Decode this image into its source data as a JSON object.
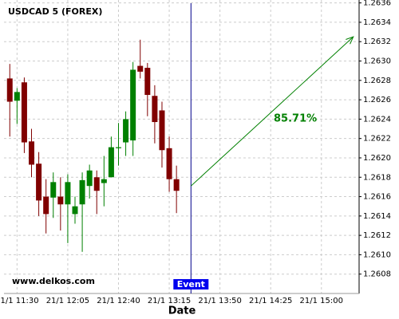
{
  "chart_data": {
    "type": "candlestick",
    "title": "USDCAD 5 (FOREX)",
    "watermark": "www.delkos.com",
    "x_label": "Date",
    "up_color": "#008000",
    "down_color": "#800000",
    "xlim": [
      "21/1 11:21",
      "21/1 15:26"
    ],
    "xticks": [
      "21/1 11:30",
      "21/1 12:05",
      "21/1 12:40",
      "21/1 13:15",
      "21/1 13:50",
      "21/1 14:25",
      "21/1 15:00"
    ],
    "ylim": [
      1.2606,
      1.26363
    ],
    "yticks": [
      1.2608,
      {
        "value": 1.261,
        "label": "1.2610"
      },
      1.2612,
      1.2614,
      1.2616,
      1.2618,
      {
        "value": 1.262,
        "label": "1.2620"
      },
      1.2622,
      1.2624,
      1.2626,
      1.2628,
      {
        "value": 1.263,
        "label": "1.2630"
      },
      1.2632,
      1.2634,
      1.2636
    ],
    "grid": true,
    "x": [
      "21/1 11:25",
      "21/1 11:30",
      "21/1 11:35",
      "21/1 11:40",
      "21/1 11:45",
      "21/1 11:50",
      "21/1 11:55",
      "21/1 12:00",
      "21/1 12:05",
      "21/1 12:10",
      "21/1 12:15",
      "21/1 12:20",
      "21/1 12:25",
      "21/1 12:30",
      "21/1 12:35",
      "21/1 12:40",
      "21/1 12:45",
      "21/1 12:50",
      "21/1 12:55",
      "21/1 13:00",
      "21/1 13:05",
      "21/1 13:10",
      "21/1 13:15",
      "21/1 13:20"
    ],
    "open": [
      1.26282,
      1.26259,
      1.26278,
      1.26217,
      1.26194,
      1.2616,
      1.26159,
      1.2616,
      1.26152,
      1.26142,
      1.26152,
      1.26171,
      1.2618,
      1.26174,
      1.2618,
      1.2621,
      1.26216,
      1.26218,
      1.26295,
      1.26293,
      1.26264,
      1.26249,
      1.2621,
      1.26178
    ],
    "high": [
      1.26297,
      1.26272,
      1.26283,
      1.2623,
      1.26206,
      1.26178,
      1.26185,
      1.2618,
      1.26183,
      1.2616,
      1.26185,
      1.26193,
      1.26187,
      1.26202,
      1.26222,
      1.26236,
      1.26248,
      1.26299,
      1.26322,
      1.26298,
      1.26275,
      1.26258,
      1.26222,
      1.26192
    ],
    "low": [
      1.26222,
      1.26235,
      1.26205,
      1.2618,
      1.2614,
      1.26122,
      1.26138,
      1.26125,
      1.26112,
      1.26132,
      1.26103,
      1.26158,
      1.26142,
      1.2615,
      1.2618,
      1.26192,
      1.26202,
      1.26202,
      1.26282,
      1.26243,
      1.26215,
      1.2619,
      1.26165,
      1.26143
    ],
    "close": [
      1.26258,
      1.26268,
      1.26216,
      1.26193,
      1.26156,
      1.26142,
      1.26175,
      1.26152,
      1.26175,
      1.2615,
      1.26177,
      1.26187,
      1.26166,
      1.26178,
      1.26211,
      1.26211,
      1.2624,
      1.26291,
      1.26289,
      1.26265,
      1.26237,
      1.26208,
      1.26178,
      1.26166
    ],
    "event": {
      "label": "Event",
      "x": "21/1 13:30"
    },
    "trend_arrow": {
      "x": [
        "21/1 13:30",
        "21/1 15:22"
      ],
      "y": [
        1.26171,
        1.26325
      ],
      "label": "85.71%",
      "color": "#008000"
    }
  }
}
